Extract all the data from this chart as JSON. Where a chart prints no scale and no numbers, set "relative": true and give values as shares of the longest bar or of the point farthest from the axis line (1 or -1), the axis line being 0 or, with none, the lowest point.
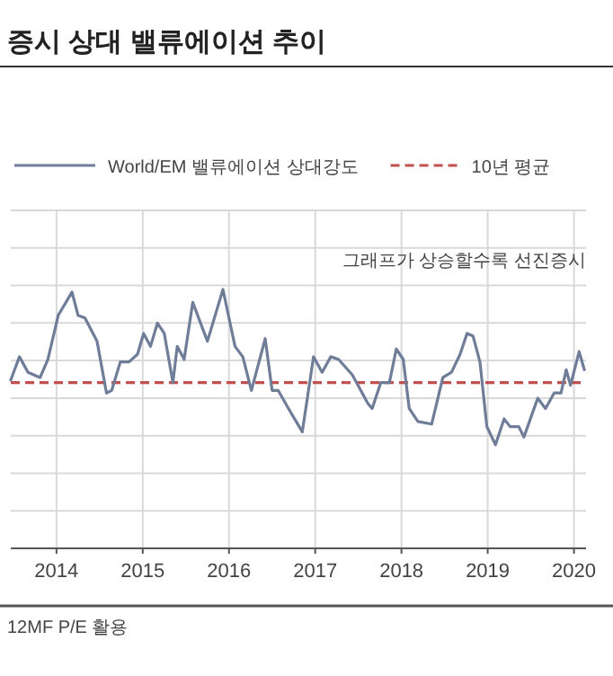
{
  "chart_data": {
    "type": "line",
    "title": "증시 상대 밸류에이션 추이",
    "relative": true,
    "x": [
      2013.47,
      2013.57,
      2013.67,
      2013.81,
      2013.9,
      2014.02,
      2014.18,
      2014.25,
      2014.33,
      2014.47,
      2014.58,
      2014.64,
      2014.74,
      2014.84,
      2014.94,
      2015.01,
      2015.09,
      2015.17,
      2015.25,
      2015.35,
      2015.4,
      2015.48,
      2015.58,
      2015.75,
      2015.93,
      2016.07,
      2016.16,
      2016.26,
      2016.42,
      2016.5,
      2016.57,
      2016.69,
      2016.85,
      2016.98,
      2017.08,
      2017.18,
      2017.27,
      2017.43,
      2017.61,
      2017.66,
      2017.76,
      2017.86,
      2017.94,
      2018.02,
      2018.09,
      2018.19,
      2018.35,
      2018.48,
      2018.58,
      2018.68,
      2018.76,
      2018.83,
      2018.91,
      2018.99,
      2019.09,
      2019.19,
      2019.26,
      2019.36,
      2019.42,
      2019.58,
      2019.67,
      2019.77,
      2019.85,
      2019.91,
      2019.96,
      2020.06,
      2020.12
    ],
    "series": [
      {
        "name": "World/EM 밸류에이션 상대강도",
        "color": "#6f7d99",
        "values": [
          0.65,
          0.74,
          0.68,
          0.66,
          0.73,
          0.9,
          0.99,
          0.9,
          0.89,
          0.8,
          0.6,
          0.61,
          0.72,
          0.72,
          0.75,
          0.83,
          0.78,
          0.87,
          0.83,
          0.64,
          0.78,
          0.73,
          0.95,
          0.8,
          1.0,
          0.78,
          0.74,
          0.61,
          0.81,
          0.61,
          0.61,
          0.54,
          0.45,
          0.74,
          0.68,
          0.74,
          0.73,
          0.67,
          0.56,
          0.54,
          0.64,
          0.64,
          0.77,
          0.73,
          0.54,
          0.49,
          0.48,
          0.66,
          0.68,
          0.75,
          0.83,
          0.82,
          0.72,
          0.47,
          0.4,
          0.5,
          0.47,
          0.47,
          0.43,
          0.58,
          0.54,
          0.6,
          0.6,
          0.69,
          0.63,
          0.76,
          0.69
        ]
      }
    ],
    "xlim": [
      2013.47,
      2020.14
    ],
    "xticks": [
      2014,
      2015,
      2016,
      2017,
      2018,
      2019,
      2020
    ],
    "ref_lines": [
      {
        "axis": "y",
        "value": 0.64,
        "label": "10년 평균",
        "color": "#c0504d",
        "line_style": "dashed"
      }
    ],
    "annotations": [
      "그래프가 상승할수록 선진증시",
      "12MF P/E 활용"
    ],
    "grid": true,
    "legend": "top"
  }
}
